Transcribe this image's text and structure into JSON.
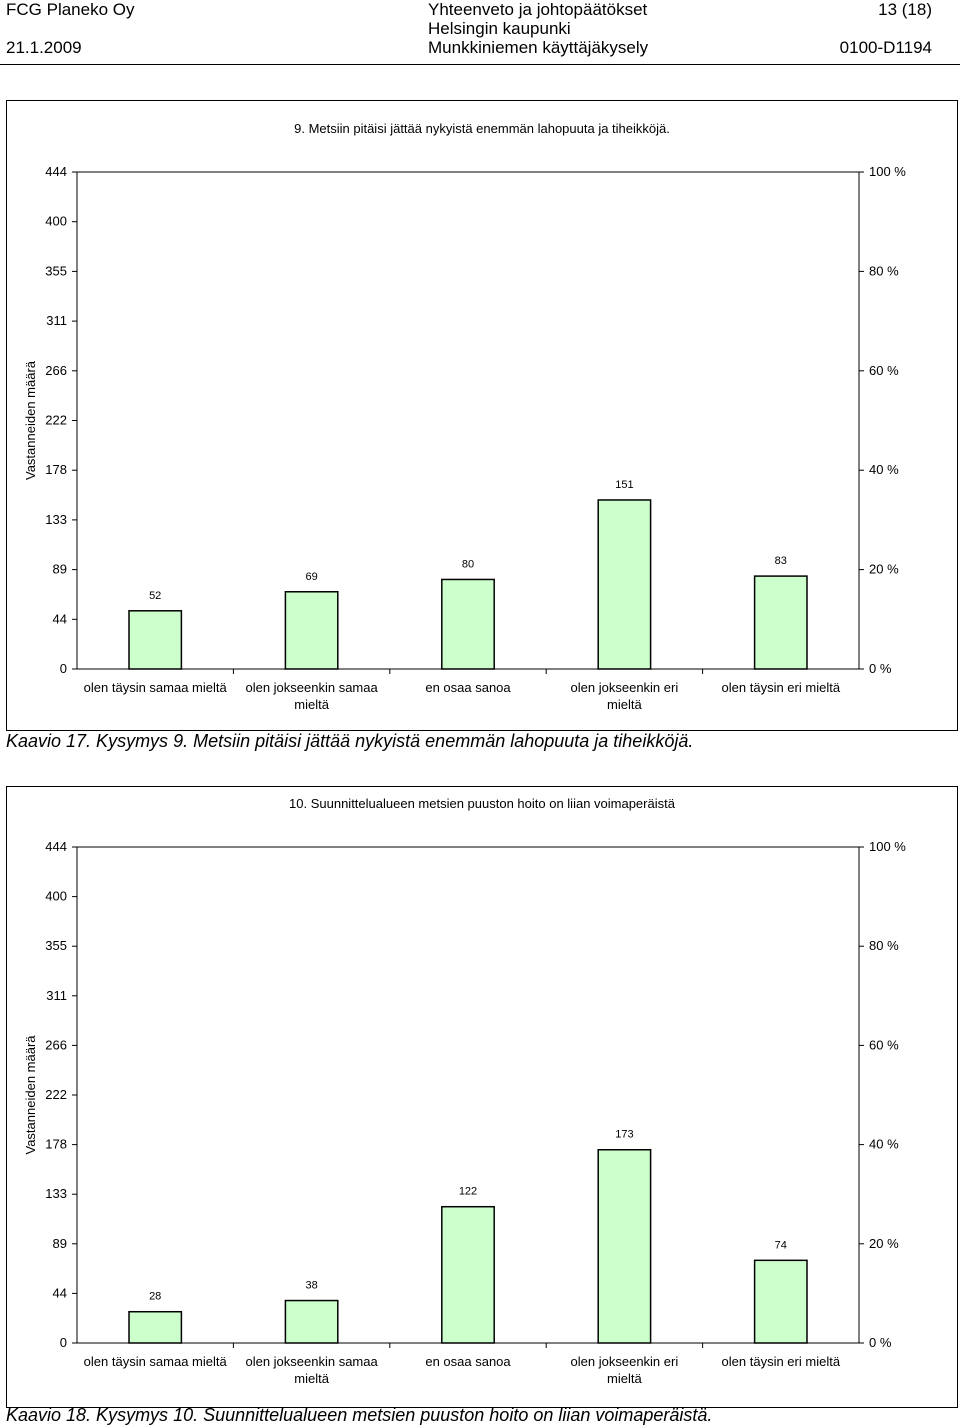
{
  "header": {
    "company": "FCG Planeko Oy",
    "date": "21.1.2009",
    "doc_title": "Yhteenveto ja johtopäätökset",
    "client": "Helsingin kaupunki",
    "survey": "Munkkiniemen käyttäjäkysely",
    "page": "13 (18)",
    "doc_code": "0100-D1194"
  },
  "captions": {
    "chart1": "Kaavio 17. Kysymys 9. Metsiin pitäisi jättää nykyistä enemmän lahopuuta ja tiheikköjä.",
    "chart2": "Kaavio 18. Kysymys 10. Suunnittelualueen metsien puuston hoito on liian voimaperäistä."
  },
  "colors": {
    "bar_fill": "#ccffcc",
    "bar_stroke": "#000000"
  },
  "chart_data": [
    {
      "type": "bar",
      "title": "9. Metsiin pitäisi jättää nykyistä enemmän lahopuuta ja tiheikköjä.",
      "ylabel": "Vastanneiden määrä",
      "ylim": [
        0,
        444
      ],
      "y_ticks": [
        "0",
        "44",
        "89",
        "133",
        "178",
        "222",
        "266",
        "311",
        "355",
        "400",
        "444"
      ],
      "y2_ticks": [
        "0 %",
        "20 %",
        "40 %",
        "60 %",
        "80 %",
        "100 %"
      ],
      "grid": false,
      "categories": [
        [
          "olen täysin samaa mieltä"
        ],
        [
          "olen jokseenkin samaa",
          "mieltä"
        ],
        [
          "en osaa sanoa"
        ],
        [
          "olen jokseenkin eri",
          "mieltä"
        ],
        [
          "olen täysin eri mieltä"
        ]
      ],
      "values": [
        52,
        69,
        80,
        151,
        83
      ]
    },
    {
      "type": "bar",
      "title": "10. Suunnittelualueen metsien puuston hoito on liian voimaperäistä",
      "ylabel": "Vastanneiden määrä",
      "ylim": [
        0,
        444
      ],
      "y_ticks": [
        "0",
        "44",
        "89",
        "133",
        "178",
        "222",
        "266",
        "311",
        "355",
        "400",
        "444"
      ],
      "y2_ticks": [
        "0 %",
        "20 %",
        "40 %",
        "60 %",
        "80 %",
        "100 %"
      ],
      "grid": false,
      "categories": [
        [
          "olen täysin samaa mieltä"
        ],
        [
          "olen jokseenkin samaa",
          "mieltä"
        ],
        [
          "en osaa sanoa"
        ],
        [
          "olen jokseenkin eri",
          "mieltä"
        ],
        [
          "olen täysin eri mieltä"
        ]
      ],
      "values": [
        28,
        38,
        122,
        173,
        74
      ]
    }
  ]
}
